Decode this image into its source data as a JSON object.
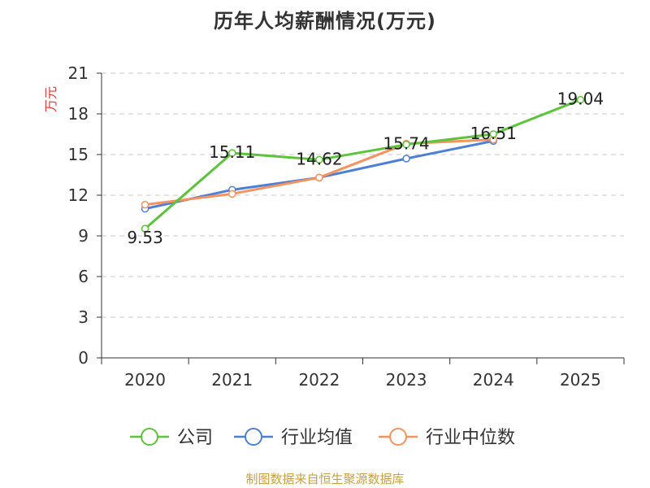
{
  "chart_data": {
    "type": "line",
    "title": "历年人均薪酬情况(万元)",
    "ylabel": "万元",
    "xlabel": "",
    "ylim": [
      0,
      21
    ],
    "yticks": [
      0,
      3,
      6,
      9,
      12,
      15,
      18,
      21
    ],
    "categories": [
      "2020",
      "2021",
      "2022",
      "2023",
      "2024",
      "2025"
    ],
    "grid": true,
    "legend_position": "bottom",
    "series": [
      {
        "name": "公司",
        "color": "#5bc43a",
        "values": [
          9.53,
          15.11,
          14.62,
          15.74,
          16.51,
          19.04
        ],
        "labels": [
          "9.53",
          "15.11",
          "14.62",
          "15.74",
          "16.51",
          "19.04"
        ]
      },
      {
        "name": "行业均值",
        "color": "#4e7fd6",
        "values": [
          11.0,
          12.4,
          13.3,
          14.7,
          16.0,
          null
        ]
      },
      {
        "name": "行业中位数",
        "color": "#f5935e",
        "values": [
          11.3,
          12.1,
          13.3,
          15.8,
          16.1,
          null
        ]
      }
    ],
    "source": "制图数据来自恒生聚源数据库"
  }
}
